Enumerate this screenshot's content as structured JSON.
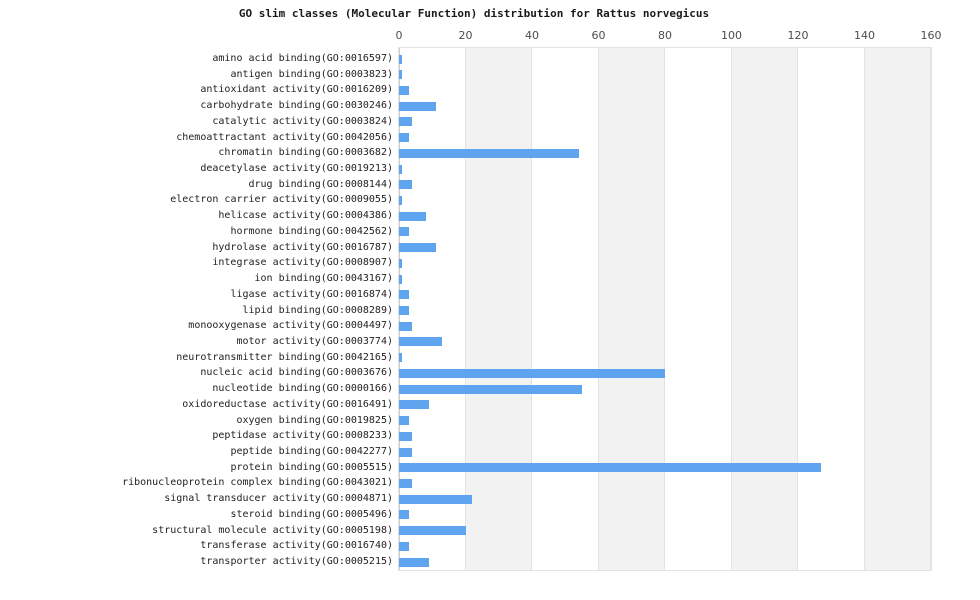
{
  "chart_data": {
    "type": "bar",
    "orientation": "horizontal",
    "title": "GO slim classes (Molecular Function) distribution for Rattus norvegicus",
    "xlabel": "",
    "ylabel": "",
    "xlim": [
      0,
      160
    ],
    "x_ticks": [
      0,
      20,
      40,
      60,
      80,
      100,
      120,
      140,
      160
    ],
    "grid": "vertical gridlines with alternating shaded column bands",
    "legend": "none",
    "categories": [
      "amino acid binding(GO:0016597)",
      "antigen binding(GO:0003823)",
      "antioxidant activity(GO:0016209)",
      "carbohydrate binding(GO:0030246)",
      "catalytic activity(GO:0003824)",
      "chemoattractant activity(GO:0042056)",
      "chromatin binding(GO:0003682)",
      "deacetylase activity(GO:0019213)",
      "drug binding(GO:0008144)",
      "electron carrier activity(GO:0009055)",
      "helicase activity(GO:0004386)",
      "hormone binding(GO:0042562)",
      "hydrolase activity(GO:0016787)",
      "integrase activity(GO:0008907)",
      "ion binding(GO:0043167)",
      "ligase activity(GO:0016874)",
      "lipid binding(GO:0008289)",
      "monooxygenase activity(GO:0004497)",
      "motor activity(GO:0003774)",
      "neurotransmitter binding(GO:0042165)",
      "nucleic acid binding(GO:0003676)",
      "nucleotide binding(GO:0000166)",
      "oxidoreductase activity(GO:0016491)",
      "oxygen binding(GO:0019825)",
      "peptidase activity(GO:0008233)",
      "peptide binding(GO:0042277)",
      "protein binding(GO:0005515)",
      "ribonucleoprotein complex binding(GO:0043021)",
      "signal transducer activity(GO:0004871)",
      "steroid binding(GO:0005496)",
      "structural molecule activity(GO:0005198)",
      "transferase activity(GO:0016740)",
      "transporter activity(GO:0005215)"
    ],
    "values": [
      1,
      1,
      3,
      11,
      4,
      3,
      54,
      1,
      4,
      1,
      8,
      3,
      11,
      1,
      1,
      3,
      3,
      4,
      13,
      1,
      80,
      55,
      9,
      3,
      4,
      4,
      127,
      4,
      22,
      3,
      20,
      3,
      9
    ],
    "colors": {
      "bar": "#5fa4ee",
      "band_gray": "#f2f2f2",
      "band_white": "#ffffff",
      "gridline": "#e3e3e3",
      "tick_label": "#4d4d4d",
      "category_label": "#222222",
      "title": "#1a1a1a"
    }
  }
}
